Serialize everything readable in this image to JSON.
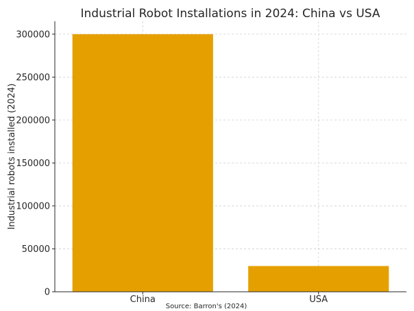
{
  "chart_data": {
    "type": "bar",
    "title": "Industrial Robot Installations in 2024: China vs USA",
    "xlabel": "",
    "ylabel": "Industrial robots installed (2024)",
    "categories": [
      "China",
      "USA"
    ],
    "values": [
      300000,
      30000
    ],
    "ylim": [
      0,
      315000
    ],
    "yticks": [
      0,
      50000,
      100000,
      150000,
      200000,
      250000,
      300000
    ],
    "grid": true,
    "bar_color": "#E5A000",
    "source": "Source: Barron's (2024)"
  }
}
